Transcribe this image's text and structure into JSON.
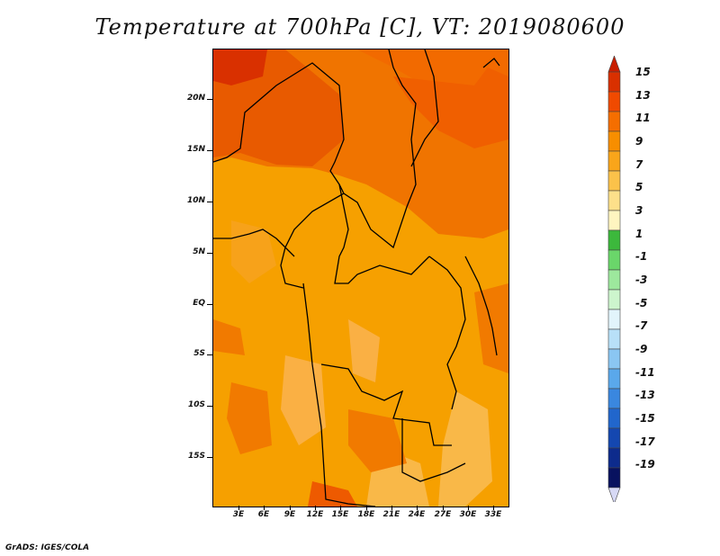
{
  "title": "Temperature at 700hPa [C], VT: 2019080600",
  "credit": "GrADS: IGES/COLA",
  "map": {
    "variable": "Temperature at 700hPa",
    "units": "C",
    "valid_time": "2019080600",
    "lat_labels": [
      "20N",
      "15N",
      "10N",
      "5N",
      "EQ",
      "5S",
      "10S",
      "15S"
    ],
    "lat_values": [
      20,
      15,
      10,
      5,
      0,
      -5,
      -10,
      -15
    ],
    "lon_labels": [
      "3E",
      "6E",
      "9E",
      "12E",
      "15E",
      "18E",
      "21E",
      "24E",
      "27E",
      "30E",
      "33E"
    ],
    "lon_values": [
      3,
      6,
      9,
      12,
      15,
      18,
      21,
      24,
      27,
      30,
      33
    ],
    "lat_range": [
      -19.5,
      24.5
    ],
    "lon_range": [
      0.5,
      35
    ]
  },
  "colorbar": {
    "labels": [
      "15",
      "13",
      "11",
      "9",
      "7",
      "5",
      "3",
      "1",
      "-1",
      "-3",
      "-5",
      "-7",
      "-9",
      "-11",
      "-13",
      "-15",
      "-17",
      "-19"
    ],
    "colors": [
      "#d93000",
      "#f04a00",
      "#f56e00",
      "#f78e00",
      "#f9a51a",
      "#fbc24a",
      "#fde08a",
      "#fff5c0",
      "#3cb83c",
      "#6ad66a",
      "#9de89d",
      "#cdf5cd",
      "#e2f4fb",
      "#b8e0f8",
      "#8ac6f2",
      "#5aa8eb",
      "#3a87df",
      "#2166cc",
      "#1447b0",
      "#0d2b8c",
      "#08125f"
    ],
    "top_cap_color": "#c81e00",
    "bottom_cap_color": "#d7d9f5"
  }
}
